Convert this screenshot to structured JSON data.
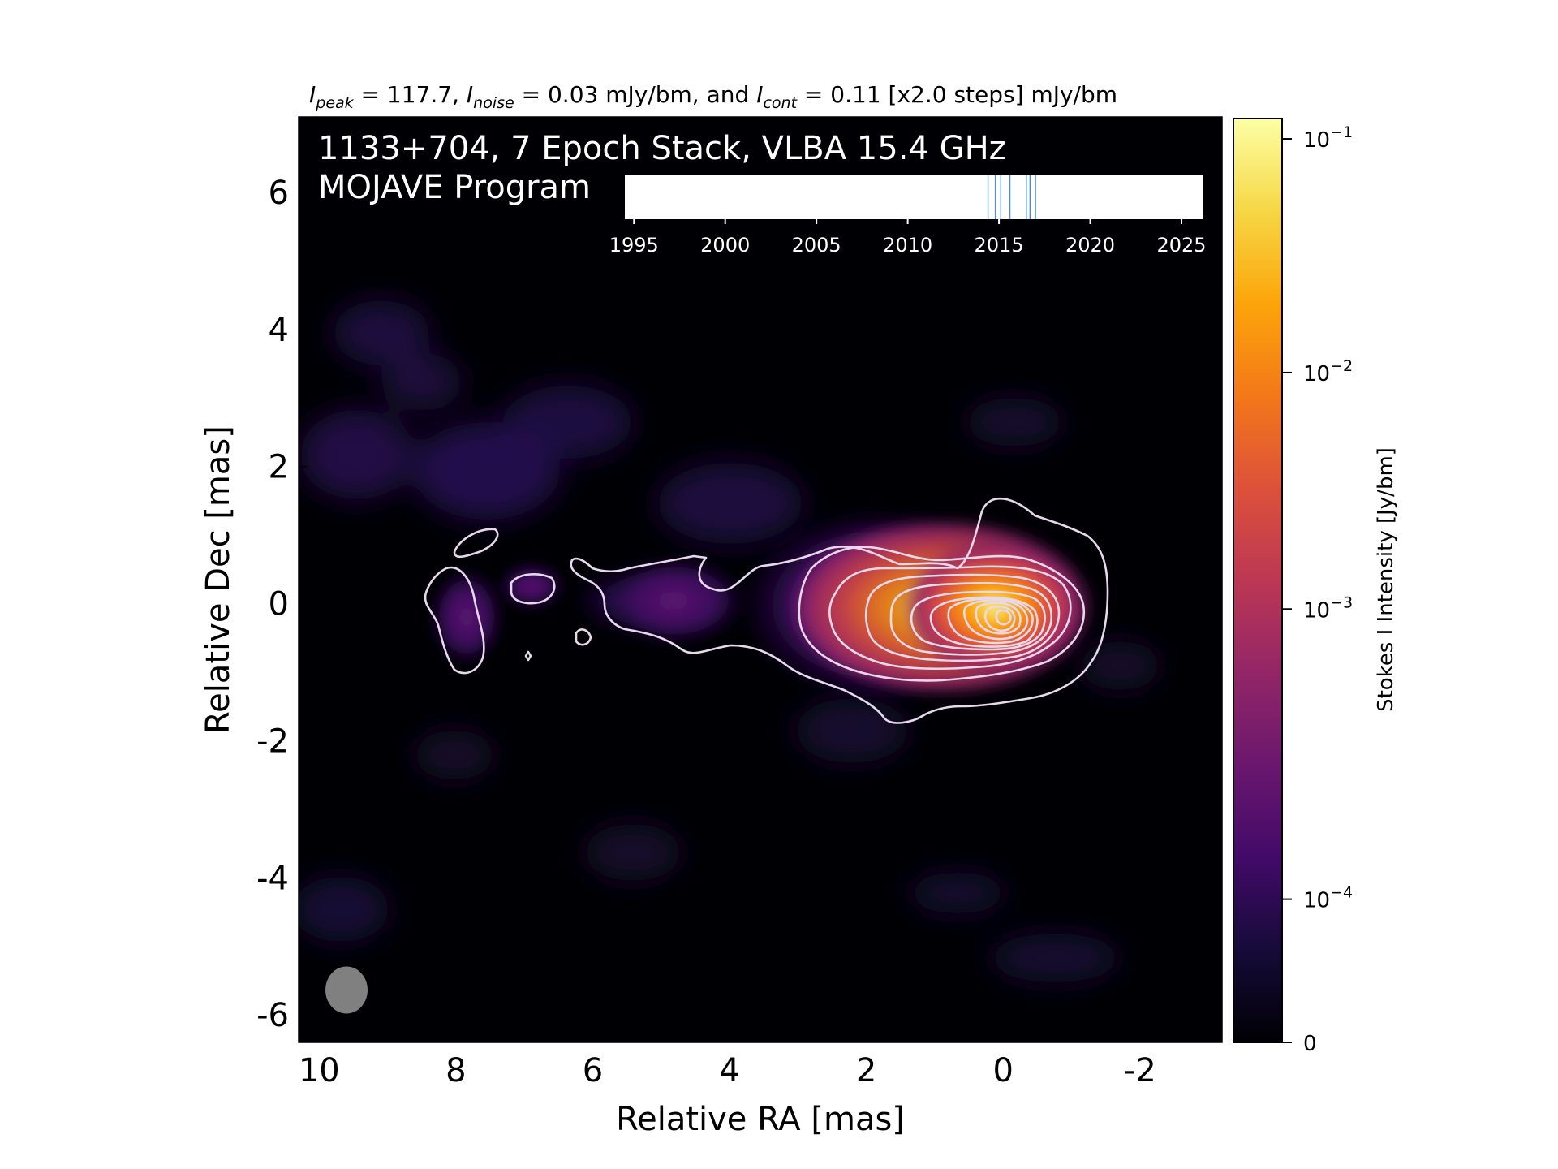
{
  "chart_data": {
    "type": "heatmap",
    "header": {
      "prefix_peak": "I",
      "sub_peak": "peak",
      "peak_text": " = 117.7, ",
      "prefix_noise": "I",
      "sub_noise": "noise",
      "noise_text": " = 0.03 mJy/bm, and ",
      "prefix_cont": "I",
      "sub_cont": "cont",
      "cont_text": " = 0.11 [x2.0 steps] mJy/bm"
    },
    "title_line1": "1133+704, 7 Epoch Stack, VLBA 15.4 GHz",
    "title_line2": "MOJAVE Program",
    "xlabel": "Relative RA [mas]",
    "ylabel": "Relative Dec [mas]",
    "xlim": [
      10.3,
      -3.2
    ],
    "ylim": [
      -6.4,
      7.1
    ],
    "x_ticks": [
      {
        "value": 10,
        "label": "10"
      },
      {
        "value": 8,
        "label": "8"
      },
      {
        "value": 6,
        "label": "6"
      },
      {
        "value": 4,
        "label": "4"
      },
      {
        "value": 2,
        "label": "2"
      },
      {
        "value": 0,
        "label": "0"
      },
      {
        "value": -2,
        "label": "-2"
      }
    ],
    "y_ticks": [
      {
        "value": 6,
        "label": "6"
      },
      {
        "value": 4,
        "label": "4"
      },
      {
        "value": 2,
        "label": "2"
      },
      {
        "value": 0,
        "label": "0"
      },
      {
        "value": -2,
        "label": "-2"
      },
      {
        "value": -4,
        "label": "-4"
      },
      {
        "value": -6,
        "label": "-6"
      }
    ],
    "colorbar": {
      "label": "Stokes I Intensity [Jy/bm]",
      "colormap": "inferno",
      "ticks": [
        {
          "label": "0",
          "frac": 0.0
        },
        {
          "label": "10",
          "exp": "−4",
          "frac": 0.155
        },
        {
          "label": "10",
          "exp": "−3",
          "frac": 0.469
        },
        {
          "label": "10",
          "exp": "−2",
          "frac": 0.725
        },
        {
          "label": "10",
          "exp": "−1",
          "frac": 0.978
        }
      ]
    },
    "epoch_timeline": {
      "tick_years": [
        1995,
        2000,
        2005,
        2010,
        2015,
        2020,
        2025
      ],
      "range": [
        1994.5,
        2026.2
      ],
      "epochs": [
        2014.4,
        2014.8,
        2015.6,
        2016.5,
        2016.7,
        2017.0,
        2015.1
      ],
      "line_color": "#4e8fd0"
    },
    "source": {
      "core_position": [
        0.0,
        0.0
      ],
      "jet_direction": "east",
      "peak_mjy_per_beam": 117.7,
      "noise_mjy_per_beam": 0.03,
      "lowest_contour_mjy_per_beam": 0.11,
      "contour_step_factor": 2.0
    },
    "beam": {
      "x": 9.6,
      "y": -5.6,
      "major_mas": 0.7,
      "minor_mas": 0.62,
      "color": "#808080"
    }
  }
}
